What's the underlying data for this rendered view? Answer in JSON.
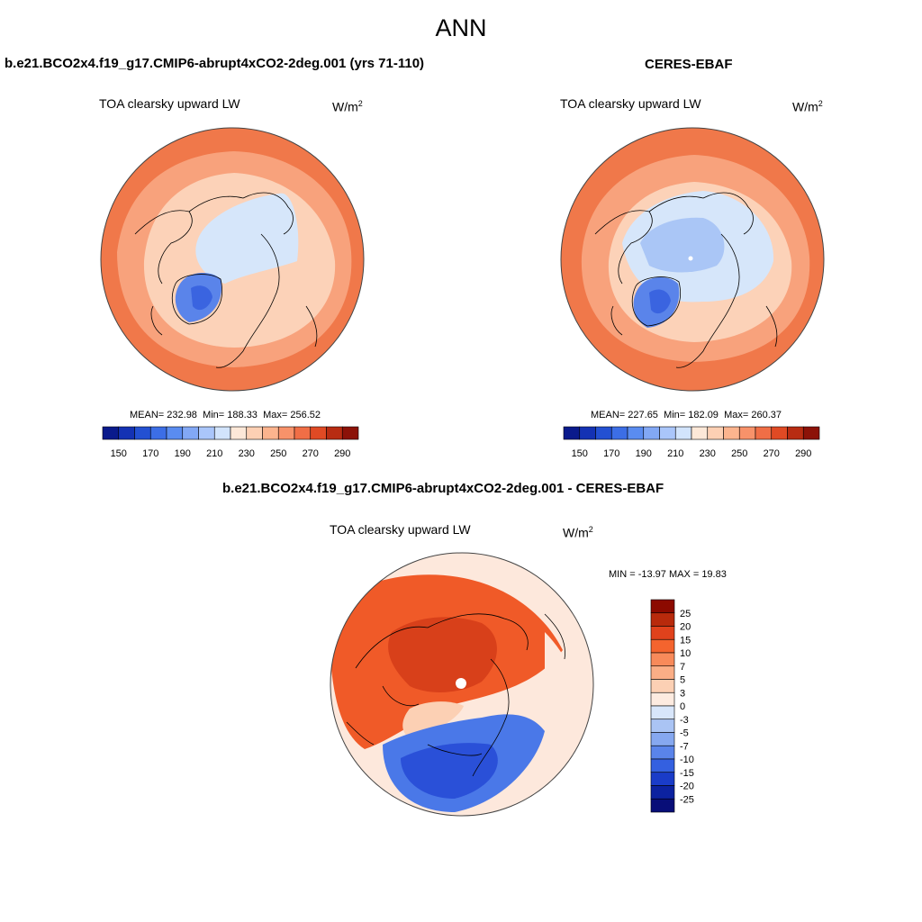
{
  "figure": {
    "title": "ANN"
  },
  "panels": {
    "test": {
      "case_title": "b.e21.BCO2x4.f19_g17.CMIP6-abrupt4xCO2-2deg.001 (yrs 71-110)",
      "variable": "TOA clearsky upward LW",
      "units": "W/m",
      "units_exp": "2",
      "stats": {
        "mean_label": "MEAN=",
        "mean": "232.98",
        "min_label": "Min=",
        "min": "188.33",
        "max_label": "Max=",
        "max": "256.52"
      }
    },
    "ref": {
      "case_title": "CERES-EBAF",
      "variable": "TOA clearsky upward LW",
      "units": "W/m",
      "units_exp": "2",
      "stats": {
        "mean_label": "MEAN=",
        "mean": "227.65",
        "min_label": "Min=",
        "min": "182.09",
        "max_label": "Max=",
        "max": "260.37"
      }
    },
    "diff": {
      "case_title": "b.e21.BCO2x4.f19_g17.CMIP6-abrupt4xCO2-2deg.001 - CERES-EBAF",
      "variable": "TOA clearsky upward LW",
      "units": "W/m",
      "units_exp": "2",
      "minmax": "MIN = -13.97 MAX =  19.83"
    }
  },
  "colorbars": {
    "main": {
      "orientation": "horizontal",
      "tick_labels": [
        "150",
        "170",
        "190",
        "210",
        "230",
        "250",
        "270",
        "290"
      ],
      "colors": [
        "#0a1a8c",
        "#1432b4",
        "#2350d2",
        "#3c6ee6",
        "#5a8cf0",
        "#82a8f5",
        "#aac6fa",
        "#d2e4fc",
        "#fde8d8",
        "#fdd0b4",
        "#fcb48e",
        "#f8926a",
        "#f06e46",
        "#e04a24",
        "#b82c12",
        "#8c1208"
      ]
    },
    "diff": {
      "orientation": "vertical",
      "levels_top_to_bottom": [
        "25",
        "20",
        "15",
        "10",
        "7",
        "5",
        "3",
        "0",
        "-3",
        "-5",
        "-7",
        "-10",
        "-15",
        "-20",
        "-25"
      ],
      "colors_top_to_bottom": [
        "#8c0a00",
        "#b82a0c",
        "#e0421c",
        "#f4642e",
        "#f88a5a",
        "#fbae86",
        "#fcd0b4",
        "#fdebe0",
        "#d8e6fa",
        "#aac4f4",
        "#86a8f0",
        "#5a84ea",
        "#3460e0",
        "#1a3cc8",
        "#0c22a0",
        "#080e78"
      ]
    }
  },
  "map_colors": {
    "ocean_warm": "#f0784a",
    "ocean_mid": "#f8a27c",
    "land_light": "#fcd2b8",
    "pale": "#fde8dc",
    "ice_light": "#d6e6fa",
    "ice_mid": "#aac6f6",
    "greenland": "#5a84ea",
    "greenland_deep": "#3a64e0",
    "diff_strong": "#d8401a",
    "diff_med": "#f05a28",
    "diff_light": "#fcd0b4",
    "diff_blue": "#4a78e8",
    "diff_blue_deep": "#2a50d8"
  }
}
